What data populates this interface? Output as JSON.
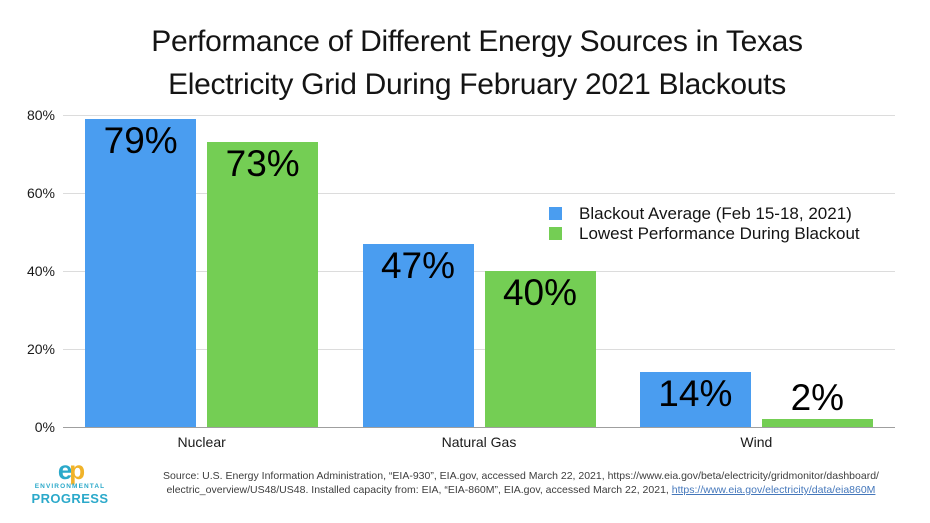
{
  "title": {
    "line1": "Performance of Different Energy Sources in Texas",
    "line2": "Electricity Grid During February 2021 Blackouts"
  },
  "chart_data": {
    "type": "bar",
    "title": "Performance of Different Energy Sources in Texas Electricity Grid During February 2021 Blackouts",
    "categories": [
      "Nuclear",
      "Natural Gas",
      "Wind"
    ],
    "series": [
      {
        "name": "Blackout Average (Feb 15-18, 2021)",
        "color": "#4a9df0",
        "values": [
          79,
          47,
          14
        ]
      },
      {
        "name": "Lowest Performance During Blackout",
        "color": "#74ce54",
        "values": [
          73,
          40,
          2
        ]
      }
    ],
    "value_suffix": "%",
    "xlabel": "",
    "ylabel": "",
    "ylim": [
      0,
      80
    ],
    "yticks": [
      {
        "value": 0,
        "label": "0%"
      },
      {
        "value": 20,
        "label": "20%"
      },
      {
        "value": 40,
        "label": "40%"
      },
      {
        "value": 60,
        "label": "60%"
      },
      {
        "value": 80,
        "label": "80%"
      }
    ],
    "grid": true,
    "legend_position": "middle-right",
    "data_labels": [
      "79%",
      "73%",
      "47%",
      "40%",
      "14%",
      "2%"
    ]
  },
  "colors": {
    "grid": "#dcdcdc",
    "axis": "#9f9f9f",
    "link": "#4477bb",
    "logo_teal": "#2ba9ca",
    "logo_gold": "#f0b32a"
  },
  "source": {
    "line1": "Source: U.S. Energy Information Administration, “EIA-930”, EIA.gov, accessed March 22, 2021, https://www.eia.gov/beta/electricity/gridmonitor/dashboard/",
    "line2_text": "electric_overview/US48/US48. Installed capacity from: EIA, “EIA-860M”, EIA.gov, accessed March 22, 2021, ",
    "line2_link": "https://www.eia.gov/electricity/data/eia860M"
  },
  "logo": {
    "mark_e": "e",
    "mark_p": "p",
    "name_line1": "ENVIRONMENTAL",
    "name_line2": "PROGRESS"
  }
}
